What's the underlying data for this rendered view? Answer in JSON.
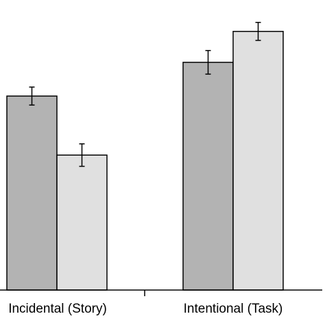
{
  "chart_data": {
    "type": "bar",
    "categories": [
      "Incidental (Story)",
      "Intentional (Task)"
    ],
    "series": [
      {
        "color": "#b3b3b3",
        "values": [
          0.69,
          0.81
        ],
        "errors": [
          0.032,
          0.042
        ]
      },
      {
        "color": "#e0e0e0",
        "values": [
          0.48,
          0.92
        ],
        "errors": [
          0.04,
          0.032
        ]
      }
    ],
    "ylim": [
      0,
      1
    ],
    "title": "",
    "xlabel": "",
    "ylabel": "",
    "grid": false,
    "legend": false
  }
}
